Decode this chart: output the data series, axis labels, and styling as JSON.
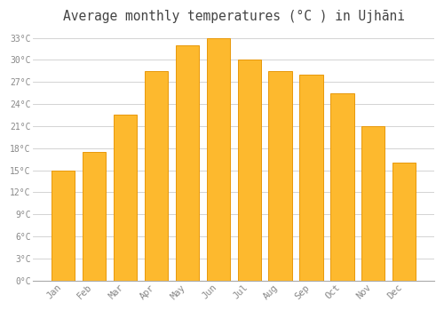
{
  "title": "Average monthly temperatures (°C ) in Ujhāni",
  "months": [
    "Jan",
    "Feb",
    "Mar",
    "Apr",
    "May",
    "Jun",
    "Jul",
    "Aug",
    "Sep",
    "Oct",
    "Nov",
    "Dec"
  ],
  "values": [
    15,
    17.5,
    22.5,
    28.5,
    32,
    33,
    30,
    28.5,
    28,
    25.5,
    21,
    16
  ],
  "bar_color": "#FDB92E",
  "bar_edge_color": "#E8980A",
  "background_color": "#FFFFFF",
  "grid_color": "#CCCCCC",
  "text_color": "#888888",
  "ytick_step": 3,
  "ymin": 0,
  "ymax": 34,
  "title_fontsize": 10.5
}
